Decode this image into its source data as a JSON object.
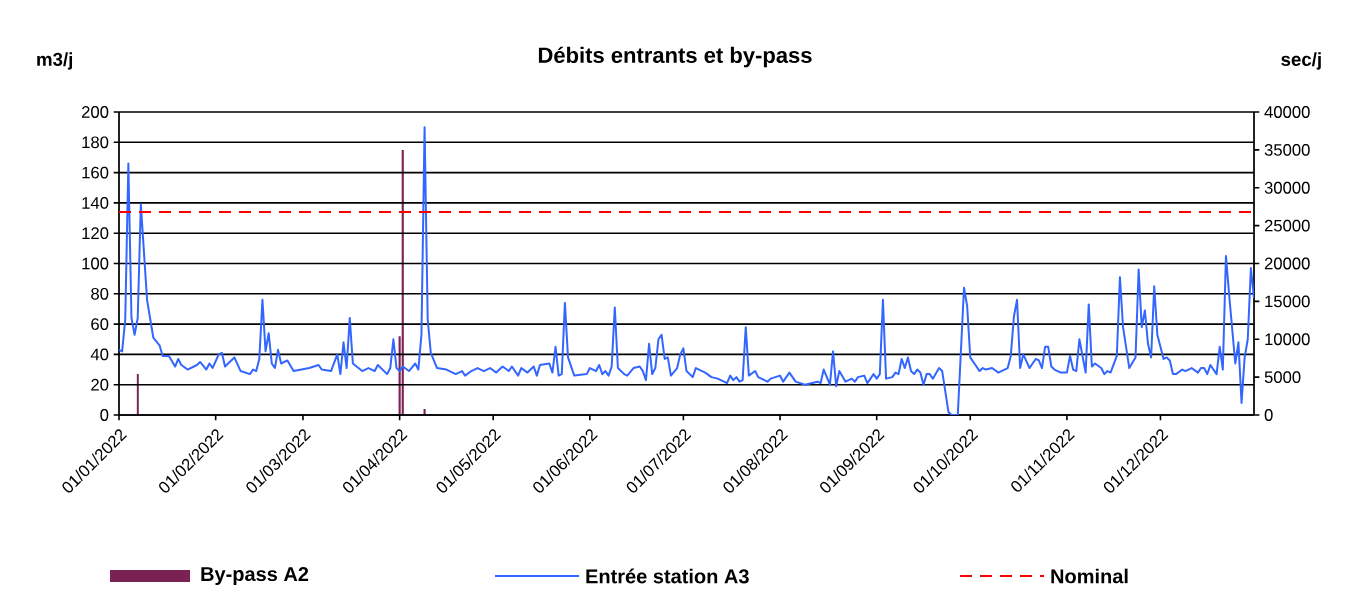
{
  "chart_data": {
    "type": "line",
    "title": "Débits entrants et by-pass",
    "ylabel": "m3/j",
    "y2label": "sec/j",
    "xlim": [
      "2022-01-01",
      "2022-12-31"
    ],
    "xticks": [
      {
        "value": "2022-01-01",
        "label": "01/01/2022"
      },
      {
        "value": "2022-02-01",
        "label": "01/02/2022"
      },
      {
        "value": "2022-03-01",
        "label": "01/03/2022"
      },
      {
        "value": "2022-04-01",
        "label": "01/04/2022"
      },
      {
        "value": "2022-05-01",
        "label": "01/05/2022"
      },
      {
        "value": "2022-06-01",
        "label": "01/06/2022"
      },
      {
        "value": "2022-07-01",
        "label": "01/07/2022"
      },
      {
        "value": "2022-08-01",
        "label": "01/08/2022"
      },
      {
        "value": "2022-09-01",
        "label": "01/09/2022"
      },
      {
        "value": "2022-10-01",
        "label": "01/10/2022"
      },
      {
        "value": "2022-11-01",
        "label": "01/11/2022"
      },
      {
        "value": "2022-12-01",
        "label": "01/12/2022"
      }
    ],
    "ylim": [
      0,
      200
    ],
    "yticks": [
      0,
      20,
      40,
      60,
      80,
      100,
      120,
      140,
      160,
      180,
      200
    ],
    "y2lim": [
      0,
      40000
    ],
    "y2ticks": [
      0,
      5000,
      10000,
      15000,
      20000,
      25000,
      30000,
      35000,
      40000
    ],
    "grid": "y",
    "legend": "bottom",
    "series": [
      {
        "name": "By-pass A2",
        "type": "bar",
        "axis": "y2",
        "color": "#7b2252",
        "x": [
          "2022-01-07",
          "2022-04-01",
          "2022-04-02",
          "2022-04-09"
        ],
        "values": [
          5400,
          10400,
          35000,
          800
        ]
      },
      {
        "name": "Entrée station A3",
        "color": "#3366ff",
        "x": [
          "2022-01-01",
          "2022-01-02",
          "2022-01-03",
          "2022-01-04",
          "2022-01-05",
          "2022-01-06",
          "2022-01-07",
          "2022-01-08",
          "2022-01-10",
          "2022-01-12",
          "2022-01-14",
          "2022-01-15",
          "2022-01-17",
          "2022-01-19",
          "2022-01-20",
          "2022-01-21",
          "2022-01-23",
          "2022-01-26",
          "2022-01-27",
          "2022-01-29",
          "2022-01-30",
          "2022-01-31",
          "2022-02-02",
          "2022-02-03",
          "2022-02-04",
          "2022-02-05",
          "2022-02-07",
          "2022-02-09",
          "2022-02-12",
          "2022-02-13",
          "2022-02-14",
          "2022-02-15",
          "2022-02-16",
          "2022-02-17",
          "2022-02-18",
          "2022-02-19",
          "2022-02-20",
          "2022-02-21",
          "2022-02-22",
          "2022-02-24",
          "2022-02-26",
          "2022-03-03",
          "2022-03-06",
          "2022-03-07",
          "2022-03-10",
          "2022-03-12",
          "2022-03-13",
          "2022-03-14",
          "2022-03-15",
          "2022-03-16",
          "2022-03-17",
          "2022-03-20",
          "2022-03-22",
          "2022-03-24",
          "2022-03-25",
          "2022-03-28",
          "2022-03-29",
          "2022-03-30",
          "2022-03-31",
          "2022-04-01",
          "2022-04-02",
          "2022-04-04",
          "2022-04-06",
          "2022-04-07",
          "2022-04-08",
          "2022-04-09",
          "2022-04-10",
          "2022-04-11",
          "2022-04-13",
          "2022-04-16",
          "2022-04-19",
          "2022-04-21",
          "2022-04-22",
          "2022-04-24",
          "2022-04-26",
          "2022-04-28",
          "2022-04-30",
          "2022-05-02",
          "2022-05-04",
          "2022-05-06",
          "2022-05-07",
          "2022-05-09",
          "2022-05-10",
          "2022-05-12",
          "2022-05-14",
          "2022-05-15",
          "2022-05-16",
          "2022-05-19",
          "2022-05-20",
          "2022-05-21",
          "2022-05-22",
          "2022-05-23",
          "2022-05-24",
          "2022-05-25",
          "2022-05-27",
          "2022-05-31",
          "2022-06-01",
          "2022-06-03",
          "2022-06-04",
          "2022-06-05",
          "2022-06-06",
          "2022-06-07",
          "2022-06-08",
          "2022-06-09",
          "2022-06-10",
          "2022-06-12",
          "2022-06-13",
          "2022-06-15",
          "2022-06-17",
          "2022-06-18",
          "2022-06-19",
          "2022-06-20",
          "2022-06-21",
          "2022-06-22",
          "2022-06-23",
          "2022-06-24",
          "2022-06-25",
          "2022-06-26",
          "2022-06-27",
          "2022-06-29",
          "2022-06-30",
          "2022-07-01",
          "2022-07-02",
          "2022-07-04",
          "2022-07-05",
          "2022-07-08",
          "2022-07-10",
          "2022-07-12",
          "2022-07-15",
          "2022-07-16",
          "2022-07-17",
          "2022-07-18",
          "2022-07-19",
          "2022-07-20",
          "2022-07-21",
          "2022-07-22",
          "2022-07-24",
          "2022-07-25",
          "2022-07-26",
          "2022-07-28",
          "2022-07-29",
          "2022-08-01",
          "2022-08-02",
          "2022-08-04",
          "2022-08-06",
          "2022-08-09",
          "2022-08-11",
          "2022-08-13",
          "2022-08-14",
          "2022-08-15",
          "2022-08-17",
          "2022-08-18",
          "2022-08-19",
          "2022-08-20",
          "2022-08-22",
          "2022-08-24",
          "2022-08-25",
          "2022-08-26",
          "2022-08-28",
          "2022-08-29",
          "2022-08-31",
          "2022-09-01",
          "2022-09-02",
          "2022-09-03",
          "2022-09-04",
          "2022-09-06",
          "2022-09-07",
          "2022-09-08",
          "2022-09-09",
          "2022-09-10",
          "2022-09-11",
          "2022-09-12",
          "2022-09-13",
          "2022-09-14",
          "2022-09-15",
          "2022-09-16",
          "2022-09-17",
          "2022-09-18",
          "2022-09-19",
          "2022-09-21",
          "2022-09-22",
          "2022-09-24",
          "2022-09-25",
          "2022-09-27",
          "2022-09-29",
          "2022-09-30",
          "2022-10-01",
          "2022-10-02",
          "2022-10-04",
          "2022-10-05",
          "2022-10-06",
          "2022-10-08",
          "2022-10-10",
          "2022-10-12",
          "2022-10-13",
          "2022-10-14",
          "2022-10-15",
          "2022-10-16",
          "2022-10-17",
          "2022-10-18",
          "2022-10-20",
          "2022-10-22",
          "2022-10-23",
          "2022-10-24",
          "2022-10-25",
          "2022-10-26",
          "2022-10-27",
          "2022-10-28",
          "2022-10-30",
          "2022-11-01",
          "2022-11-02",
          "2022-11-03",
          "2022-11-04",
          "2022-11-05",
          "2022-11-07",
          "2022-11-08",
          "2022-11-09",
          "2022-11-10",
          "2022-11-12",
          "2022-11-13",
          "2022-11-14",
          "2022-11-15",
          "2022-11-17",
          "2022-11-18",
          "2022-11-19",
          "2022-11-21",
          "2022-11-23",
          "2022-11-24",
          "2022-11-25",
          "2022-11-26",
          "2022-11-27",
          "2022-11-28",
          "2022-11-29",
          "2022-11-30",
          "2022-12-02",
          "2022-12-03",
          "2022-12-04",
          "2022-12-05",
          "2022-12-06",
          "2022-12-08",
          "2022-12-09",
          "2022-12-11",
          "2022-12-13",
          "2022-12-14",
          "2022-12-15",
          "2022-12-16",
          "2022-12-17",
          "2022-12-19",
          "2022-12-20",
          "2022-12-21",
          "2022-12-22",
          "2022-12-23",
          "2022-12-25",
          "2022-12-26",
          "2022-12-27",
          "2022-12-28",
          "2022-12-29",
          "2022-12-30",
          "2022-12-31"
        ],
        "values": [
          43,
          42,
          63,
          166,
          64,
          53,
          64,
          139,
          76,
          51,
          46,
          39,
          39,
          32,
          37,
          33,
          30,
          33,
          35,
          30,
          34,
          31,
          40,
          41,
          32,
          34,
          38,
          29,
          27,
          30,
          29,
          37,
          76,
          42,
          54,
          34,
          31,
          43,
          34,
          36,
          29,
          31,
          33,
          30,
          29,
          40,
          27,
          48,
          31,
          64,
          34,
          29,
          31,
          29,
          33,
          27,
          31,
          50,
          31,
          29,
          32,
          29,
          34,
          30,
          53,
          190,
          63,
          41,
          31,
          30,
          27,
          29,
          26,
          29,
          31,
          29,
          31,
          28,
          32,
          29,
          32,
          26,
          31,
          28,
          32,
          26,
          33,
          34,
          28,
          45,
          26,
          27,
          74,
          38,
          26,
          27,
          31,
          29,
          33,
          27,
          29,
          26,
          32,
          71,
          31,
          27,
          26,
          31,
          32,
          29,
          23,
          47,
          27,
          31,
          50,
          53,
          37,
          38,
          26,
          31,
          40,
          44,
          29,
          25,
          31,
          28,
          25,
          24,
          21,
          26,
          23,
          25,
          22,
          23,
          58,
          26,
          29,
          25,
          24,
          22,
          24,
          26,
          22,
          28,
          22,
          20,
          21,
          22,
          21,
          30,
          20,
          42,
          19,
          29,
          22,
          24,
          22,
          25,
          26,
          21,
          27,
          24,
          27,
          76,
          24,
          25,
          28,
          27,
          37,
          31,
          38,
          29,
          27,
          30,
          28,
          20,
          27,
          27,
          24,
          31,
          29,
          2,
          0,
          0,
          84,
          72,
          38,
          35,
          29,
          31,
          30,
          31,
          28,
          30,
          31,
          39,
          65,
          76,
          31,
          40,
          31,
          37,
          36,
          31,
          45,
          45,
          32,
          30,
          28,
          28,
          39,
          30,
          29,
          50,
          28,
          73,
          32,
          34,
          31,
          27,
          29,
          28,
          39,
          91,
          58,
          31,
          38,
          96,
          58,
          69,
          47,
          38,
          85,
          53,
          37,
          38,
          36,
          27,
          27,
          30,
          29,
          31,
          28,
          31,
          31,
          27,
          33,
          27,
          45,
          30,
          105,
          80,
          34,
          48,
          8,
          38,
          50,
          97,
          77
        ]
      }
    ],
    "ref_lines": [
      {
        "axis": "y",
        "value": 134,
        "label": "Nominal",
        "color": "#ff0000",
        "line_style": "dashed"
      }
    ]
  }
}
